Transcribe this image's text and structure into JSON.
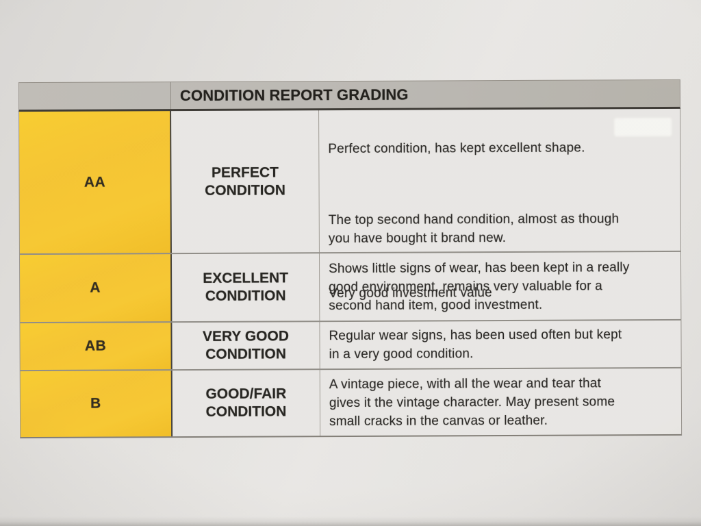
{
  "photo": {
    "paper_color": "#e5e3e0",
    "header_bg": "#b7b4ae",
    "grade_column_color": "#f5c427",
    "text_color": "#1b1916"
  },
  "table": {
    "title": "CONDITION REPORT GRADING",
    "rows": [
      {
        "grade": "AA",
        "condition": [
          "PERFECT",
          "CONDITION"
        ],
        "paragraphs": [
          [
            "Perfect condition, has kept excellent shape."
          ],
          [
            "The top second hand condition, almost as though",
            "you have bought it brand new."
          ],
          [
            "Very good investment value"
          ]
        ]
      },
      {
        "grade": "A",
        "condition": [
          "EXCELLENT",
          "CONDITION"
        ],
        "description": [
          "Shows little signs of wear, has been kept in a really",
          "good environment, remains very valuable for a",
          "second hand item, good investment."
        ]
      },
      {
        "grade": "AB",
        "condition": [
          "VERY GOOD",
          "CONDITION"
        ],
        "description": [
          "Regular wear signs, has been used often but kept",
          "in a very good condition."
        ]
      },
      {
        "grade": "B",
        "condition": [
          "GOOD/FAIR",
          "CONDITION"
        ],
        "description": [
          "A vintage piece, with all the wear and tear that",
          "gives it the vintage character. May present some",
          "small cracks in the canvas or leather."
        ]
      }
    ]
  }
}
